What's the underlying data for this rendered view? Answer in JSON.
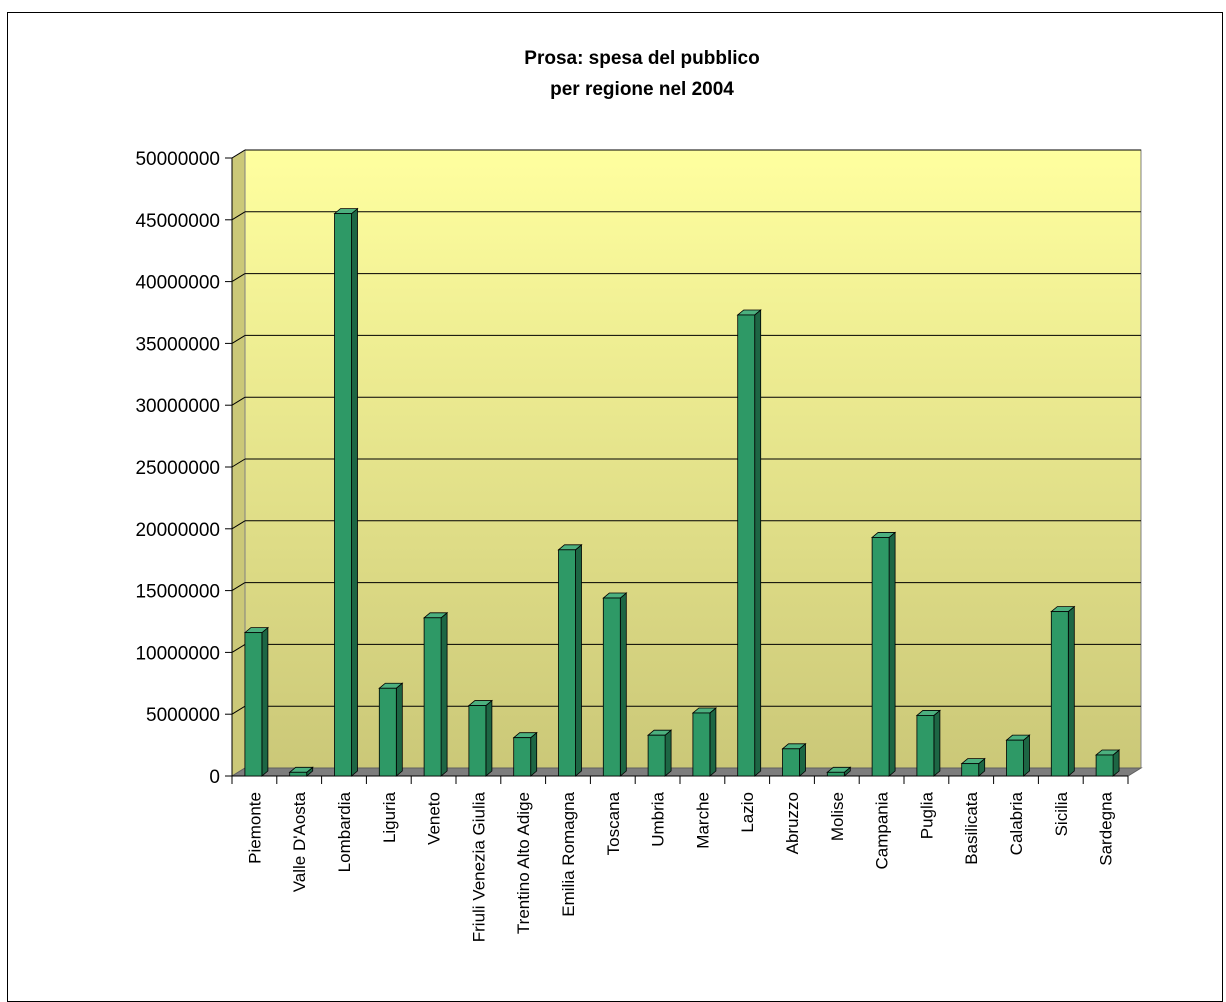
{
  "chart_data": {
    "type": "bar",
    "title_lines": [
      "Prosa: spesa del pubblico",
      "per regione nel 2004"
    ],
    "categories": [
      "Piemonte",
      "Valle D'Aosta",
      "Lombardia",
      "Liguria",
      "Veneto",
      "Friuli Venezia Giulia",
      "Trentino Alto Adige",
      "Emilia Romagna",
      "Toscana",
      "Umbria",
      "Marche",
      "Lazio",
      "Abruzzo",
      "Molise",
      "Campania",
      "Puglia",
      "Basilicata",
      "Calabria",
      "Sicilia",
      "Sardegna"
    ],
    "values": [
      11600000,
      300000,
      45500000,
      7100000,
      12800000,
      5700000,
      3100000,
      18300000,
      14400000,
      3300000,
      5100000,
      37300000,
      2200000,
      300000,
      19300000,
      4900000,
      1000000,
      2900000,
      13300000,
      1700000
    ],
    "ylim": [
      0,
      50000000
    ],
    "y_ticks": [
      "0",
      "5000000",
      "10000000",
      "15000000",
      "20000000",
      "25000000",
      "30000000",
      "35000000",
      "40000000",
      "45000000",
      "50000000"
    ],
    "grid": true,
    "colors": {
      "bar_front": "#2e9966",
      "bar_side": "#1d6644",
      "bar_top": "#4cb07f",
      "wall_top": "#ffff9f",
      "wall_bottom": "#cbc878",
      "floor": "#7d7d7d"
    }
  }
}
